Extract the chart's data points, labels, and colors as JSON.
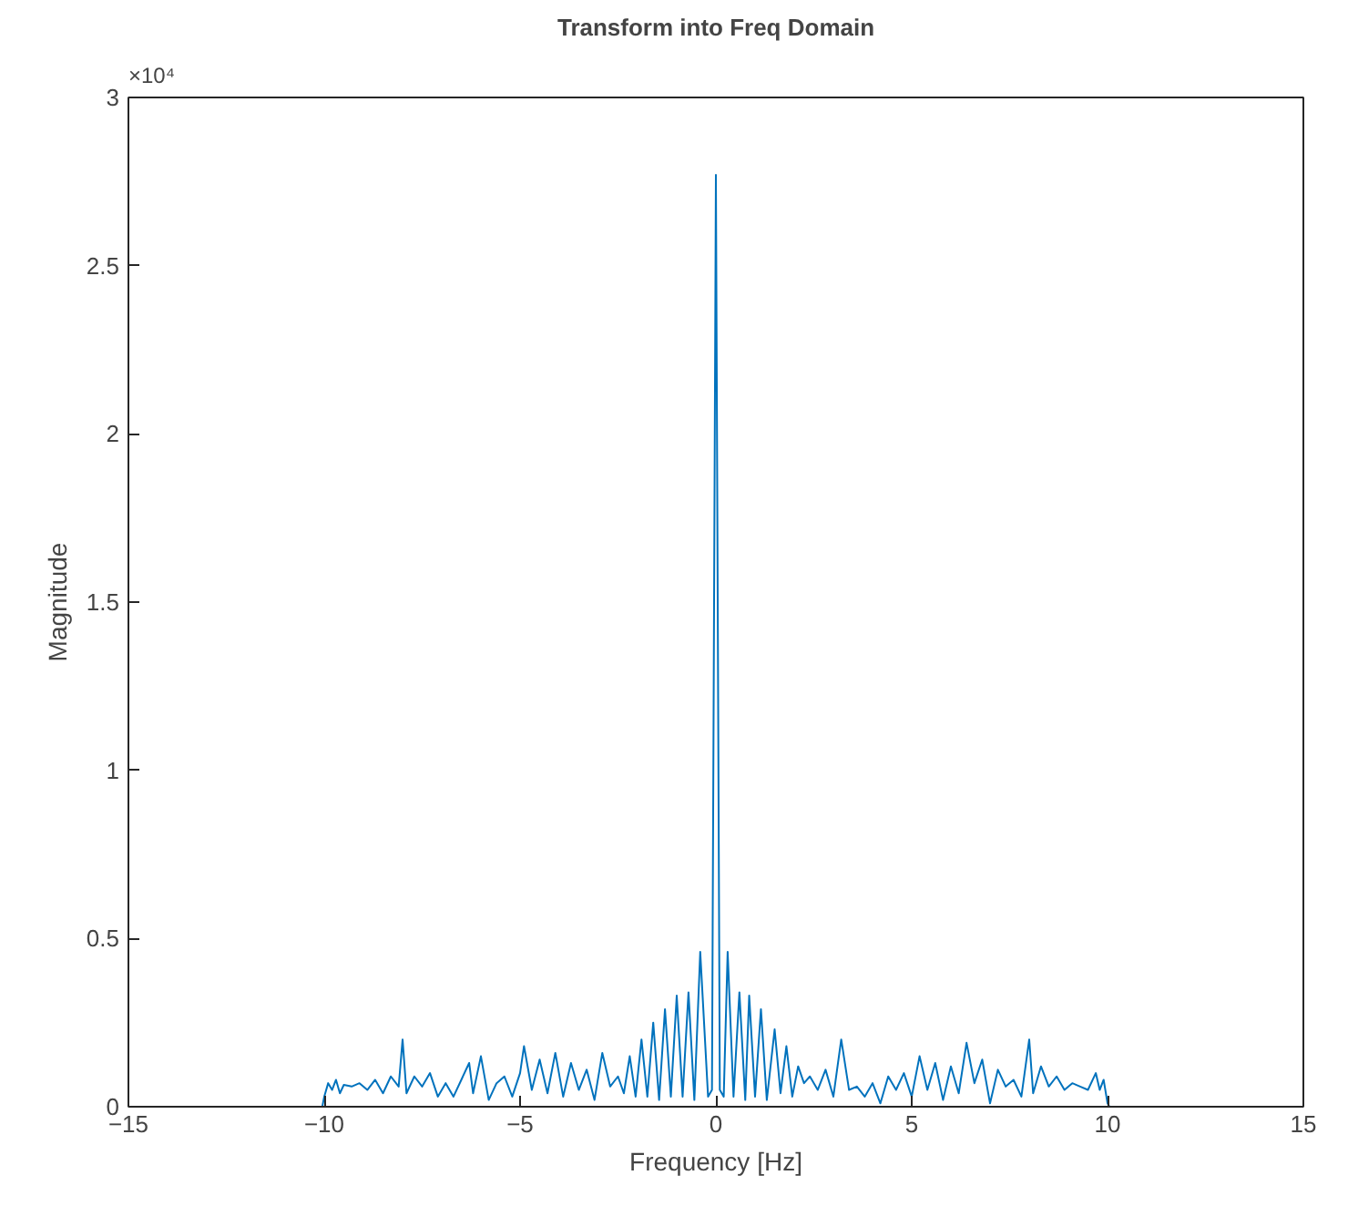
{
  "chart_data": {
    "type": "line",
    "title": "Transform into Freq Domain",
    "xlabel": "Frequency [Hz]",
    "ylabel": "Magnitude",
    "annotations": [
      "×10⁴"
    ],
    "x": [
      -13.2,
      -10.05,
      -10,
      -9.9,
      -9.8,
      -9.7,
      -9.6,
      -9.5,
      -9.3,
      -9.1,
      -8.9,
      -8.7,
      -8.5,
      -8.3,
      -8.1,
      -8.0,
      -7.9,
      -7.7,
      -7.5,
      -7.3,
      -7.1,
      -6.9,
      -6.7,
      -6.5,
      -6.3,
      -6.2,
      -6.0,
      -5.8,
      -5.6,
      -5.4,
      -5.2,
      -5.0,
      -4.9,
      -4.7,
      -4.5,
      -4.3,
      -4.1,
      -3.9,
      -3.7,
      -3.5,
      -3.3,
      -3.1,
      -2.9,
      -2.7,
      -2.5,
      -2.35,
      -2.2,
      -2.05,
      -1.9,
      -1.75,
      -1.6,
      -1.45,
      -1.3,
      -1.15,
      -1.0,
      -0.85,
      -0.7,
      -0.55,
      -0.4,
      -0.2,
      -0.1,
      0,
      0.1,
      0.2,
      0.3,
      0.45,
      0.6,
      0.75,
      0.85,
      1.0,
      1.15,
      1.3,
      1.5,
      1.65,
      1.8,
      1.95,
      2.1,
      2.25,
      2.4,
      2.6,
      2.8,
      3.0,
      3.2,
      3.4,
      3.6,
      3.8,
      4.0,
      4.2,
      4.4,
      4.6,
      4.8,
      5.0,
      5.2,
      5.4,
      5.6,
      5.8,
      6.0,
      6.2,
      6.4,
      6.6,
      6.8,
      7.0,
      7.2,
      7.4,
      7.6,
      7.8,
      8.0,
      8.1,
      8.3,
      8.5,
      8.7,
      8.9,
      9.1,
      9.3,
      9.5,
      9.7,
      9.8,
      9.9,
      10.0,
      10.05,
      13.2
    ],
    "series": [
      {
        "color": "#0072bd",
        "values": [
          0,
          0,
          0.03,
          0.07,
          0.05,
          0.08,
          0.04,
          0.065,
          0.06,
          0.07,
          0.05,
          0.08,
          0.04,
          0.09,
          0.06,
          0.2,
          0.04,
          0.09,
          0.06,
          0.1,
          0.03,
          0.07,
          0.03,
          0.08,
          0.13,
          0.04,
          0.15,
          0.02,
          0.07,
          0.09,
          0.03,
          0.1,
          0.18,
          0.05,
          0.14,
          0.04,
          0.16,
          0.03,
          0.13,
          0.05,
          0.11,
          0.02,
          0.16,
          0.06,
          0.09,
          0.04,
          0.15,
          0.03,
          0.2,
          0.03,
          0.25,
          0.02,
          0.29,
          0.03,
          0.33,
          0.03,
          0.34,
          0.02,
          0.46,
          0.03,
          0.05,
          2.77,
          0.05,
          0.03,
          0.46,
          0.03,
          0.34,
          0.02,
          0.33,
          0.03,
          0.29,
          0.02,
          0.23,
          0.04,
          0.18,
          0.03,
          0.12,
          0.07,
          0.09,
          0.05,
          0.11,
          0.03,
          0.2,
          0.05,
          0.06,
          0.03,
          0.07,
          0.01,
          0.09,
          0.05,
          0.1,
          0.03,
          0.15,
          0.05,
          0.13,
          0.02,
          0.12,
          0.04,
          0.19,
          0.07,
          0.14,
          0.01,
          0.11,
          0.06,
          0.08,
          0.03,
          0.2,
          0.04,
          0.12,
          0.06,
          0.09,
          0.05,
          0.07,
          0.06,
          0.05,
          0.1,
          0.05,
          0.08,
          0.01,
          0,
          0
        ]
      }
    ],
    "xlim": [
      -15,
      15
    ],
    "xticks": [
      -15,
      -10,
      -5,
      0,
      5,
      10,
      15
    ],
    "ylim": [
      0,
      3
    ],
    "yticks": [
      0,
      0.5,
      1,
      1.5,
      2,
      2.5,
      3
    ],
    "grid": false,
    "marker": "none",
    "line_style": "solid"
  }
}
